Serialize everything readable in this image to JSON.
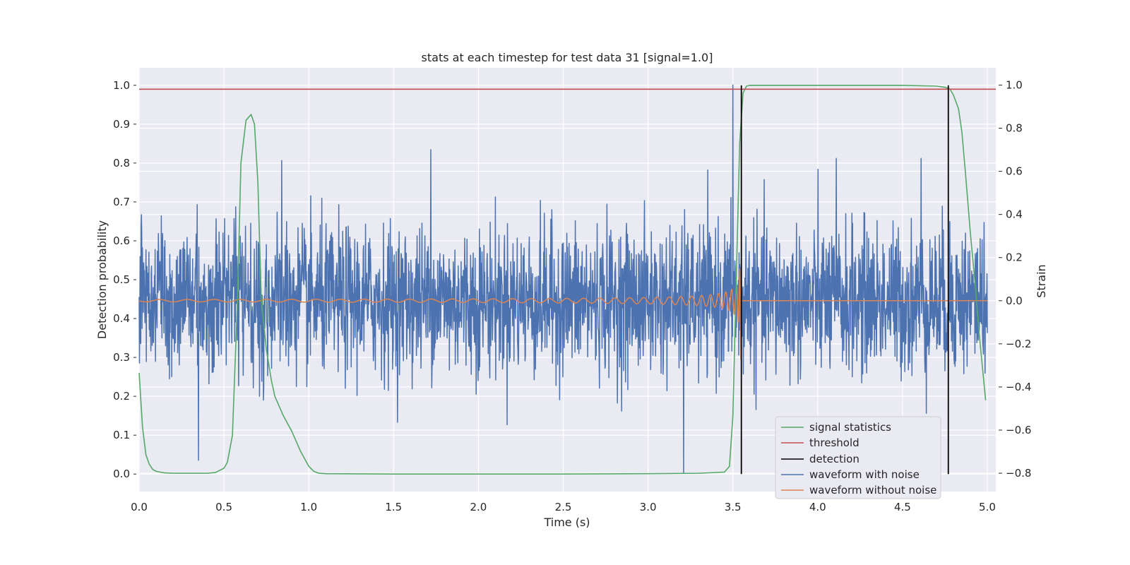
{
  "chart_data": {
    "type": "line",
    "title": "stats at each timestep for test data 31 [signal=1.0]",
    "xlabel": "Time (s)",
    "ylabel": "Detection probability",
    "y2label": "Strain",
    "xlim": [
      0.0,
      5.05
    ],
    "ylim": [
      -0.045,
      1.045
    ],
    "y2lim": [
      -0.885,
      1.08
    ],
    "xticks": [
      "0.0",
      "0.5",
      "1.0",
      "1.5",
      "2.0",
      "2.5",
      "3.0",
      "3.5",
      "4.0",
      "4.5",
      "5.0"
    ],
    "yticks": [
      "0.0",
      "0.1",
      "0.2",
      "0.3",
      "0.4",
      "0.5",
      "0.6",
      "0.7",
      "0.8",
      "0.9",
      "1.0"
    ],
    "y2ticks": [
      "−0.8",
      "−0.6",
      "−0.4",
      "−0.2",
      "0.0",
      "0.2",
      "0.4",
      "0.6",
      "0.8",
      "1.0"
    ],
    "grid": true,
    "legend_position": "lower-right",
    "colors": {
      "background": "#eaeaf2",
      "signal_statistics": "#55a868",
      "threshold": "#c44e52",
      "detection": "#000000",
      "waveform_with_noise": "#4c72b0",
      "waveform_without_noise": "#dd8452"
    },
    "series": [
      {
        "name": "signal statistics",
        "axis": "left",
        "x": [
          0.0,
          0.02,
          0.04,
          0.06,
          0.08,
          0.1,
          0.15,
          0.2,
          0.3,
          0.4,
          0.45,
          0.5,
          0.52,
          0.55,
          0.58,
          0.6,
          0.63,
          0.66,
          0.68,
          0.7,
          0.72,
          0.75,
          0.78,
          0.8,
          0.85,
          0.9,
          0.95,
          1.0,
          1.03,
          1.06,
          1.1,
          1.5,
          2.0,
          2.5,
          3.0,
          3.3,
          3.45,
          3.48,
          3.5,
          3.52,
          3.54,
          3.56,
          3.58,
          3.6,
          4.0,
          4.5,
          4.7,
          4.75,
          4.78,
          4.8,
          4.83,
          4.85,
          4.87,
          4.9,
          4.93,
          4.95,
          4.97,
          4.99
        ],
        "y": [
          0.26,
          0.12,
          0.05,
          0.025,
          0.012,
          0.007,
          0.003,
          0.002,
          0.002,
          0.002,
          0.004,
          0.015,
          0.03,
          0.1,
          0.45,
          0.8,
          0.91,
          0.925,
          0.9,
          0.75,
          0.45,
          0.32,
          0.24,
          0.2,
          0.15,
          0.11,
          0.06,
          0.02,
          0.007,
          0.002,
          0.001,
          0.0,
          0.0,
          0.0,
          0.001,
          0.002,
          0.005,
          0.02,
          0.15,
          0.5,
          0.85,
          0.98,
          0.998,
          1.0,
          1.0,
          1.0,
          0.998,
          0.995,
          0.99,
          0.975,
          0.94,
          0.88,
          0.78,
          0.62,
          0.48,
          0.37,
          0.28,
          0.19
        ]
      },
      {
        "name": "threshold",
        "axis": "left",
        "x": [
          0.0,
          5.05
        ],
        "y": [
          0.99,
          0.99
        ]
      },
      {
        "name": "detection",
        "axis": "left",
        "x": [
          3.55,
          4.77
        ],
        "y": [
          1.0,
          1.0
        ]
      },
      {
        "name": "waveform with noise",
        "axis": "right",
        "x_range": [
          0.0,
          5.0
        ],
        "noise_std": 0.17,
        "spikes": [
          {
            "x": 1.72,
            "y": 0.7
          },
          {
            "x": 3.21,
            "y": -0.8
          },
          {
            "x": 3.5,
            "y": 1.0
          },
          {
            "x": 0.35,
            "y": -0.74
          },
          {
            "x": 0.84,
            "y": 0.65
          },
          {
            "x": 4.11,
            "y": 0.66
          },
          {
            "x": 4.61,
            "y": 0.66
          }
        ]
      },
      {
        "name": "waveform without noise",
        "axis": "right",
        "x_range": [
          0.0,
          5.0
        ],
        "merger_time": 3.55,
        "peak_strain": 0.5
      }
    ]
  }
}
